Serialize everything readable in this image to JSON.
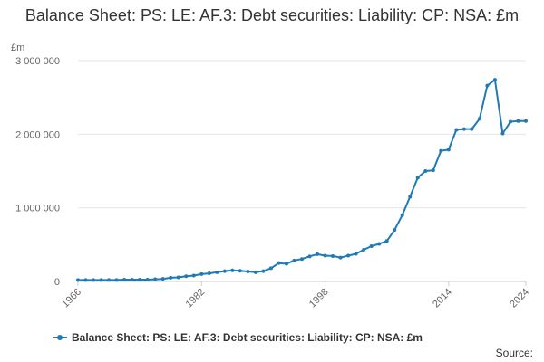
{
  "colors": {
    "series": "#1f7ab5",
    "grid": "#e6e6e6",
    "axis": "#cccccc"
  },
  "legend": {
    "label": "Balance Sheet: PS: LE: AF.3: Debt securities: Liability: CP: NSA: £m"
  },
  "source_label": "Source:",
  "chart_data": {
    "type": "line",
    "title": "Balance Sheet: PS: LE: AF.3: Debt securities: Liability: CP: NSA: £m",
    "ylabel": "£m",
    "xlabel": "",
    "xlim": [
      1966,
      2024
    ],
    "ylim": [
      0,
      3000000
    ],
    "x_ticks": [
      1966,
      1982,
      1998,
      2014,
      2024
    ],
    "y_ticks": [
      0,
      1000000,
      2000000,
      3000000
    ],
    "y_tick_labels": [
      "0",
      "1 000 000",
      "2 000 000",
      "3 000 000"
    ],
    "legend_position": "bottom",
    "grid": "horizontal",
    "series": [
      {
        "name": "Balance Sheet: PS: LE: AF.3: Debt securities: Liability: CP: NSA: £m",
        "x": [
          1966,
          1967,
          1968,
          1969,
          1970,
          1971,
          1972,
          1973,
          1974,
          1975,
          1976,
          1977,
          1978,
          1979,
          1980,
          1981,
          1982,
          1983,
          1984,
          1985,
          1986,
          1987,
          1988,
          1989,
          1990,
          1991,
          1992,
          1993,
          1994,
          1995,
          1996,
          1997,
          1998,
          1999,
          2000,
          2001,
          2002,
          2003,
          2004,
          2005,
          2006,
          2007,
          2008,
          2009,
          2010,
          2011,
          2012,
          2013,
          2014,
          2015,
          2016,
          2017,
          2018,
          2019,
          2020,
          2021,
          2022,
          2023,
          2024
        ],
        "values": [
          20000,
          20000,
          20000,
          20000,
          20000,
          20000,
          25000,
          25000,
          25000,
          25000,
          30000,
          35000,
          50000,
          55000,
          70000,
          80000,
          100000,
          110000,
          125000,
          140000,
          150000,
          145000,
          135000,
          125000,
          140000,
          180000,
          250000,
          240000,
          285000,
          305000,
          340000,
          370000,
          350000,
          345000,
          325000,
          350000,
          375000,
          430000,
          480000,
          510000,
          550000,
          700000,
          900000,
          1150000,
          1410000,
          1500000,
          1510000,
          1775000,
          1790000,
          2060000,
          2070000,
          2070000,
          2210000,
          2660000,
          2740000,
          2010000,
          2170000,
          2180000,
          2180000
        ]
      }
    ]
  }
}
